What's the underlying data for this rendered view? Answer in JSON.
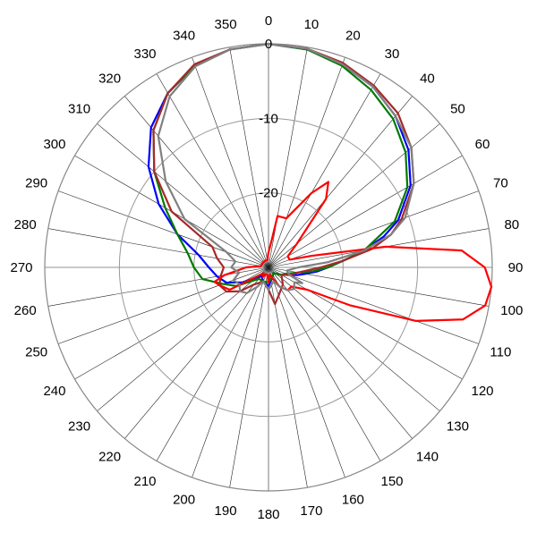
{
  "chart_data": {
    "type": "line",
    "coordinate_system": "polar",
    "angle_unit": "degrees",
    "angle_direction": "clockwise",
    "zero_angle": "top",
    "angle_ticks": [
      0,
      10,
      20,
      30,
      40,
      50,
      60,
      70,
      80,
      90,
      100,
      110,
      120,
      130,
      140,
      150,
      160,
      170,
      180,
      190,
      200,
      210,
      220,
      230,
      240,
      250,
      260,
      270,
      280,
      290,
      300,
      310,
      320,
      330,
      340,
      350
    ],
    "angle_tick_labels": [
      "0",
      "10",
      "20",
      "30",
      "40",
      "50",
      "60",
      "70",
      "80",
      "90",
      "100",
      "110",
      "120",
      "130",
      "140",
      "150",
      "160",
      "170",
      "180",
      "190",
      "200",
      "210",
      "220",
      "230",
      "240",
      "250",
      "260",
      "270",
      "280",
      "290",
      "300",
      "310",
      "320",
      "330",
      "340",
      "350"
    ],
    "radial_range": [
      -30,
      0
    ],
    "radial_ticks": [
      0,
      -10,
      -20
    ],
    "radial_tick_labels": [
      "0",
      "-10",
      "-20"
    ],
    "grid": true,
    "series": [
      {
        "color": "#0000ff",
        "points": [
          [
            0,
            0
          ],
          [
            10,
            -0.3
          ],
          [
            20,
            -1
          ],
          [
            30,
            -2
          ],
          [
            40,
            -3.5
          ],
          [
            50,
            -5.5
          ],
          [
            60,
            -8
          ],
          [
            70,
            -11.5
          ],
          [
            75,
            -14
          ],
          [
            80,
            -17
          ],
          [
            85,
            -20
          ],
          [
            90,
            -22
          ],
          [
            95,
            -23.5
          ],
          [
            100,
            -25
          ],
          [
            105,
            -26
          ],
          [
            110,
            -27
          ],
          [
            120,
            -28
          ],
          [
            140,
            -29
          ],
          [
            160,
            -28.5
          ],
          [
            180,
            -27.5
          ],
          [
            200,
            -28
          ],
          [
            220,
            -28.5
          ],
          [
            240,
            -26
          ],
          [
            250,
            -24
          ],
          [
            260,
            -23
          ],
          [
            270,
            -22
          ],
          [
            280,
            -20.5
          ],
          [
            290,
            -17
          ],
          [
            300,
            -13
          ],
          [
            310,
            -9
          ],
          [
            320,
            -5.5
          ],
          [
            330,
            -3
          ],
          [
            340,
            -1.2
          ],
          [
            350,
            -0.3
          ],
          [
            360,
            0
          ]
        ]
      },
      {
        "color": "#007a00",
        "points": [
          [
            0,
            0
          ],
          [
            10,
            -0.3
          ],
          [
            20,
            -1.2
          ],
          [
            30,
            -2.5
          ],
          [
            40,
            -4
          ],
          [
            50,
            -6
          ],
          [
            60,
            -8.5
          ],
          [
            70,
            -12
          ],
          [
            80,
            -17
          ],
          [
            85,
            -20
          ],
          [
            90,
            -22
          ],
          [
            95,
            -24
          ],
          [
            100,
            -26
          ],
          [
            110,
            -27.5
          ],
          [
            120,
            -28
          ],
          [
            140,
            -29
          ],
          [
            160,
            -28.5
          ],
          [
            180,
            -28
          ],
          [
            200,
            -28
          ],
          [
            220,
            -28
          ],
          [
            240,
            -25
          ],
          [
            250,
            -23.5
          ],
          [
            260,
            -21
          ],
          [
            270,
            -20
          ],
          [
            280,
            -19
          ],
          [
            290,
            -17
          ],
          [
            300,
            -14
          ],
          [
            310,
            -10
          ],
          [
            320,
            -6
          ],
          [
            330,
            -3
          ],
          [
            340,
            -1.2
          ],
          [
            350,
            -0.3
          ],
          [
            360,
            0
          ]
        ]
      },
      {
        "color": "#a52a2a",
        "points": [
          [
            0,
            0
          ],
          [
            10,
            -0.2
          ],
          [
            20,
            -0.8
          ],
          [
            30,
            -1.8
          ],
          [
            40,
            -3
          ],
          [
            50,
            -5
          ],
          [
            60,
            -7.5
          ],
          [
            70,
            -11
          ],
          [
            75,
            -13
          ],
          [
            80,
            -16
          ],
          [
            85,
            -20
          ],
          [
            90,
            -23
          ],
          [
            100,
            -26
          ],
          [
            110,
            -27
          ],
          [
            120,
            -28
          ],
          [
            140,
            -27
          ],
          [
            160,
            -26
          ],
          [
            170,
            -25
          ],
          [
            180,
            -27
          ],
          [
            200,
            -28
          ],
          [
            220,
            -27
          ],
          [
            230,
            -25
          ],
          [
            240,
            -23.5
          ],
          [
            250,
            -23
          ],
          [
            260,
            -23.5
          ],
          [
            270,
            -24
          ],
          [
            280,
            -23
          ],
          [
            290,
            -22
          ],
          [
            300,
            -15
          ],
          [
            310,
            -10
          ],
          [
            320,
            -6
          ],
          [
            330,
            -3
          ],
          [
            340,
            -1
          ],
          [
            350,
            -0.3
          ],
          [
            360,
            0
          ]
        ]
      },
      {
        "color": "#ff0000",
        "points": [
          [
            0,
            -28
          ],
          [
            5,
            -27
          ],
          [
            10,
            -23
          ],
          [
            20,
            -23
          ],
          [
            30,
            -18.5
          ],
          [
            35,
            -16
          ],
          [
            40,
            -18
          ],
          [
            50,
            -25
          ],
          [
            60,
            -27
          ],
          [
            70,
            -27
          ],
          [
            75,
            -24
          ],
          [
            80,
            -14
          ],
          [
            85,
            -4
          ],
          [
            90,
            -1
          ],
          [
            95,
            0
          ],
          [
            100,
            -0.5
          ],
          [
            105,
            -3
          ],
          [
            110,
            -9
          ],
          [
            115,
            -18
          ],
          [
            120,
            -24
          ],
          [
            130,
            -26
          ],
          [
            140,
            -26
          ],
          [
            150,
            -27
          ],
          [
            160,
            -28.5
          ],
          [
            170,
            -29
          ],
          [
            180,
            -28
          ],
          [
            190,
            -29
          ],
          [
            200,
            -29
          ],
          [
            210,
            -28.5
          ],
          [
            220,
            -29
          ],
          [
            240,
            -24
          ],
          [
            250,
            -23
          ],
          [
            255,
            -22.5
          ],
          [
            260,
            -24
          ],
          [
            270,
            -27
          ],
          [
            280,
            -29
          ],
          [
            300,
            -29
          ],
          [
            320,
            -29
          ],
          [
            340,
            -29
          ],
          [
            350,
            -29
          ],
          [
            360,
            -28
          ]
        ]
      },
      {
        "color": "#808080",
        "points": [
          [
            0,
            0
          ],
          [
            10,
            -0.2
          ],
          [
            20,
            -1
          ],
          [
            30,
            -2
          ],
          [
            40,
            -3.5
          ],
          [
            50,
            -5
          ],
          [
            60,
            -7.5
          ],
          [
            70,
            -10.5
          ],
          [
            75,
            -13
          ],
          [
            80,
            -17
          ],
          [
            85,
            -22
          ],
          [
            90,
            -26
          ],
          [
            100,
            -27.5
          ],
          [
            110,
            -27
          ],
          [
            115,
            -25
          ],
          [
            120,
            -26
          ],
          [
            130,
            -25.5
          ],
          [
            140,
            -26
          ],
          [
            150,
            -27
          ],
          [
            160,
            -28
          ],
          [
            180,
            -27
          ],
          [
            200,
            -28
          ],
          [
            210,
            -27
          ],
          [
            220,
            -25.5
          ],
          [
            230,
            -25
          ],
          [
            240,
            -25.5
          ],
          [
            250,
            -25
          ],
          [
            260,
            -26
          ],
          [
            270,
            -25
          ],
          [
            280,
            -25.5
          ],
          [
            290,
            -24
          ],
          [
            300,
            -17
          ],
          [
            310,
            -12
          ],
          [
            320,
            -7
          ],
          [
            330,
            -3.5
          ],
          [
            340,
            -1.3
          ],
          [
            350,
            -0.3
          ],
          [
            360,
            0
          ]
        ]
      }
    ]
  }
}
